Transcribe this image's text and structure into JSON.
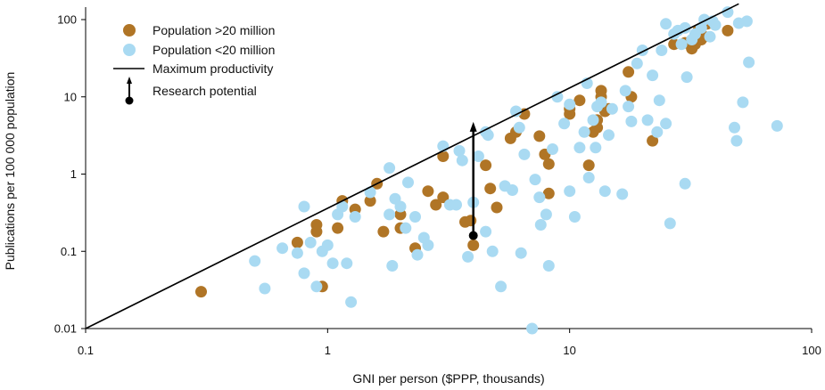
{
  "chart_data": {
    "type": "scatter",
    "xlabel": "GNI per person ($PPP, thousands)",
    "ylabel": "Publications per 100 000 population",
    "xscale": "log",
    "yscale": "log",
    "xlim": [
      0.1,
      100
    ],
    "ylim": [
      0.01,
      150
    ],
    "x_ticks": [
      0.1,
      1,
      10,
      100
    ],
    "x_tick_labels": [
      "0.1",
      "1",
      "10",
      "100"
    ],
    "y_ticks": [
      0.01,
      0.1,
      1,
      10,
      100
    ],
    "y_tick_labels": [
      "0.01",
      "0.1",
      "1",
      "10",
      "100"
    ],
    "legend": {
      "position": "top-left",
      "items": [
        {
          "label": "Population >20 million",
          "kind": "dot",
          "color": "#b07526"
        },
        {
          "label": "Population <20 million",
          "kind": "dot",
          "color": "#a9daf2"
        },
        {
          "label": "Maximum productivity",
          "kind": "line",
          "color": "#000000"
        },
        {
          "label": "Research potential",
          "kind": "arrow",
          "color": "#000000"
        }
      ]
    },
    "max_productivity_line": {
      "points": [
        [
          0.1,
          0.01
        ],
        [
          50,
          160
        ]
      ]
    },
    "research_potential": {
      "x": 4.0,
      "from_y": 0.16,
      "to_y": 4.5
    },
    "series": [
      {
        "name": "Population >20 million",
        "color": "#b07526",
        "points": [
          [
            0.3,
            0.03
          ],
          [
            0.75,
            0.13
          ],
          [
            0.9,
            0.22
          ],
          [
            0.9,
            0.18
          ],
          [
            0.95,
            0.035
          ],
          [
            1.1,
            0.2
          ],
          [
            1.15,
            0.45
          ],
          [
            1.3,
            0.35
          ],
          [
            1.5,
            0.45
          ],
          [
            1.6,
            0.75
          ],
          [
            1.7,
            0.18
          ],
          [
            2.0,
            0.3
          ],
          [
            2.0,
            0.2
          ],
          [
            2.3,
            0.11
          ],
          [
            2.6,
            0.6
          ],
          [
            2.8,
            0.4
          ],
          [
            3.0,
            0.5
          ],
          [
            3.0,
            1.7
          ],
          [
            3.7,
            0.24
          ],
          [
            3.9,
            0.25
          ],
          [
            4.0,
            0.12
          ],
          [
            4.5,
            1.3
          ],
          [
            4.7,
            0.65
          ],
          [
            5.0,
            0.37
          ],
          [
            5.7,
            2.9
          ],
          [
            6.0,
            3.5
          ],
          [
            6.5,
            6.0
          ],
          [
            7.5,
            3.1
          ],
          [
            7.9,
            1.8
          ],
          [
            8.2,
            1.35
          ],
          [
            8.2,
            0.56
          ],
          [
            10.0,
            6.0
          ],
          [
            10.0,
            7.0
          ],
          [
            11.0,
            9.0
          ],
          [
            12.0,
            1.3
          ],
          [
            12.5,
            3.5
          ],
          [
            13.0,
            4.0
          ],
          [
            13.0,
            5.0
          ],
          [
            13.5,
            12.0
          ],
          [
            13.5,
            10.0
          ],
          [
            14.0,
            6.5
          ],
          [
            14.5,
            7.0
          ],
          [
            17.5,
            21.0
          ],
          [
            18.0,
            10.0
          ],
          [
            22.0,
            2.7
          ],
          [
            27.0,
            48.0
          ],
          [
            30.0,
            50.0
          ],
          [
            32.0,
            42.0
          ],
          [
            33.0,
            48.0
          ],
          [
            34.0,
            72.0
          ],
          [
            35.0,
            55.0
          ],
          [
            36.0,
            60.0
          ],
          [
            37.0,
            88.0
          ],
          [
            45.0,
            72.0
          ]
        ]
      },
      {
        "name": "Population <20 million",
        "color": "#a9daf2",
        "points": [
          [
            0.5,
            0.075
          ],
          [
            0.55,
            0.033
          ],
          [
            0.65,
            0.11
          ],
          [
            0.75,
            0.095
          ],
          [
            0.8,
            0.38
          ],
          [
            0.8,
            0.052
          ],
          [
            0.85,
            0.13
          ],
          [
            0.9,
            0.035
          ],
          [
            0.95,
            0.1
          ],
          [
            1.0,
            0.12
          ],
          [
            1.05,
            0.07
          ],
          [
            1.1,
            0.3
          ],
          [
            1.15,
            0.38
          ],
          [
            1.2,
            0.07
          ],
          [
            1.25,
            0.022
          ],
          [
            1.3,
            0.28
          ],
          [
            1.5,
            0.58
          ],
          [
            1.8,
            0.3
          ],
          [
            1.8,
            1.2
          ],
          [
            1.85,
            0.065
          ],
          [
            1.9,
            0.48
          ],
          [
            2.0,
            0.38
          ],
          [
            2.1,
            0.2
          ],
          [
            2.15,
            0.78
          ],
          [
            2.3,
            0.28
          ],
          [
            2.35,
            0.09
          ],
          [
            2.5,
            0.15
          ],
          [
            2.6,
            0.12
          ],
          [
            3.0,
            2.3
          ],
          [
            3.2,
            0.4
          ],
          [
            3.4,
            0.4
          ],
          [
            3.5,
            2.0
          ],
          [
            3.6,
            1.5
          ],
          [
            3.8,
            0.085
          ],
          [
            4.0,
            0.43
          ],
          [
            4.2,
            1.7
          ],
          [
            4.5,
            3.5
          ],
          [
            4.6,
            3.2
          ],
          [
            4.5,
            0.18
          ],
          [
            4.8,
            0.1
          ],
          [
            5.2,
            0.035
          ],
          [
            5.4,
            0.7
          ],
          [
            5.8,
            0.62
          ],
          [
            6.0,
            6.5
          ],
          [
            6.2,
            4.0
          ],
          [
            6.3,
            0.095
          ],
          [
            6.5,
            1.8
          ],
          [
            7.0,
            0.01
          ],
          [
            7.2,
            0.85
          ],
          [
            7.5,
            0.5
          ],
          [
            7.6,
            0.22
          ],
          [
            8.0,
            0.3
          ],
          [
            8.2,
            0.065
          ],
          [
            8.5,
            2.1
          ],
          [
            8.9,
            10.0
          ],
          [
            9.5,
            4.5
          ],
          [
            10.0,
            8.0
          ],
          [
            10.0,
            0.6
          ],
          [
            10.5,
            0.28
          ],
          [
            11.0,
            2.2
          ],
          [
            11.5,
            3.5
          ],
          [
            11.8,
            15.0
          ],
          [
            12.0,
            0.9
          ],
          [
            12.5,
            5.0
          ],
          [
            12.8,
            2.2
          ],
          [
            13.0,
            7.5
          ],
          [
            13.5,
            8.5
          ],
          [
            14.0,
            0.6
          ],
          [
            14.5,
            3.2
          ],
          [
            15.0,
            7.0
          ],
          [
            16.5,
            0.55
          ],
          [
            17.0,
            12.0
          ],
          [
            17.5,
            7.5
          ],
          [
            18.0,
            4.8
          ],
          [
            19.0,
            27.0
          ],
          [
            20.0,
            40.0
          ],
          [
            21.0,
            5.0
          ],
          [
            22.0,
            19.0
          ],
          [
            23.0,
            3.5
          ],
          [
            23.5,
            9.0
          ],
          [
            24.0,
            40.0
          ],
          [
            25.0,
            88.0
          ],
          [
            25.0,
            4.5
          ],
          [
            26.0,
            0.23
          ],
          [
            27.0,
            65.0
          ],
          [
            28.0,
            72.0
          ],
          [
            29.0,
            48.0
          ],
          [
            30.0,
            78.0
          ],
          [
            30.0,
            0.75
          ],
          [
            30.5,
            18.0
          ],
          [
            32.0,
            55.0
          ],
          [
            33.0,
            65.0
          ],
          [
            35.0,
            78.0
          ],
          [
            36.0,
            100.0
          ],
          [
            38.0,
            60.0
          ],
          [
            39.0,
            95.0
          ],
          [
            40.0,
            85.0
          ],
          [
            45.0,
            125.0
          ],
          [
            48.0,
            4.0
          ],
          [
            49.0,
            2.7
          ],
          [
            50.0,
            90.0
          ],
          [
            52.0,
            8.5
          ],
          [
            54.0,
            95.0
          ],
          [
            55.0,
            28.0
          ],
          [
            72.0,
            4.2
          ]
        ]
      }
    ]
  }
}
